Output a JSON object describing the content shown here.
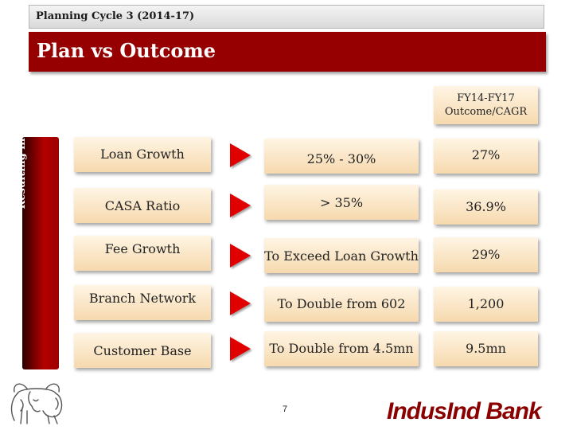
{
  "header": {
    "cycle_label": "Planning Cycle 3 (2014-17)",
    "title": "Plan vs Outcome"
  },
  "side_label": "Resulting in",
  "outcome_header": [
    "FY14-FY17",
    "Outcome/CAGR"
  ],
  "rows": [
    {
      "label": "Loan Growth",
      "target": "25% - 30%",
      "outcome": "27%"
    },
    {
      "label": "CASA Ratio",
      "target": "> 35%",
      "outcome": "36.9%"
    },
    {
      "label": "Fee Growth",
      "target": "To Exceed Loan Growth",
      "outcome": "29%"
    },
    {
      "label": "Branch Network",
      "target": "To Double from 602",
      "outcome": "1,200"
    },
    {
      "label": "Customer Base",
      "target": "To Double from 4.5mn",
      "outcome": "9.5mn"
    }
  ],
  "page_number": "7",
  "brand_name": "IndusInd Bank",
  "colors": {
    "accent": "#960000",
    "arrow": "#e00000",
    "box_fill": "#f6d9ae"
  },
  "icons": {
    "logo": "bull-logo-icon",
    "arrow": "red-triangle-arrow-icon"
  }
}
